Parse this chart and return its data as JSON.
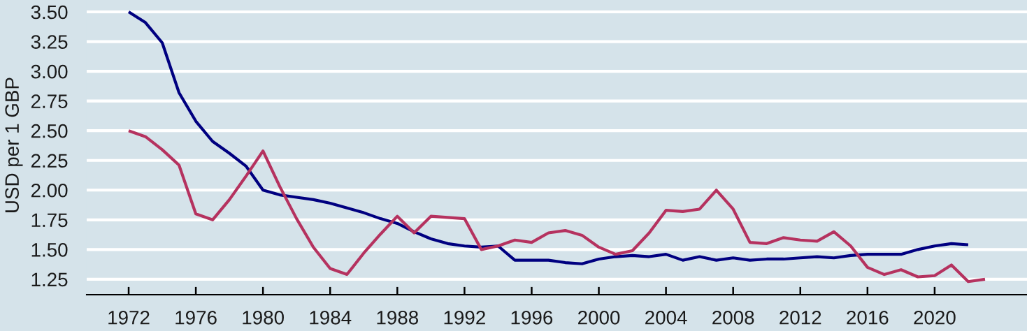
{
  "chart_data": {
    "type": "line",
    "ylabel": "USD per 1 GBP",
    "x": [
      1972,
      1973,
      1974,
      1975,
      1976,
      1977,
      1978,
      1979,
      1980,
      1981,
      1982,
      1983,
      1984,
      1985,
      1986,
      1987,
      1988,
      1989,
      1990,
      1991,
      1992,
      1993,
      1994,
      1995,
      1996,
      1997,
      1998,
      1999,
      2000,
      2001,
      2002,
      2003,
      2004,
      2005,
      2006,
      2007,
      2008,
      2009,
      2010,
      2011,
      2012,
      2013,
      2014,
      2015,
      2016,
      2017,
      2018,
      2019,
      2020,
      2021,
      2022,
      2023
    ],
    "series": [
      {
        "color": "#000080",
        "values": [
          3.5,
          3.41,
          3.24,
          2.82,
          2.58,
          2.41,
          2.31,
          2.2,
          2.0,
          1.96,
          1.94,
          1.92,
          1.89,
          1.85,
          1.81,
          1.76,
          1.72,
          1.65,
          1.59,
          1.55,
          1.53,
          1.52,
          1.53,
          1.41,
          1.41,
          1.41,
          1.39,
          1.38,
          1.42,
          1.44,
          1.45,
          1.44,
          1.46,
          1.41,
          1.44,
          1.41,
          1.43,
          1.41,
          1.42,
          1.42,
          1.43,
          1.44,
          1.43,
          1.45,
          1.46,
          1.46,
          1.46,
          1.5,
          1.53,
          1.55,
          1.54,
          null
        ]
      },
      {
        "color": "#b5325f",
        "values": [
          2.5,
          2.45,
          2.34,
          2.21,
          1.8,
          1.75,
          1.92,
          2.12,
          2.33,
          2.03,
          1.76,
          1.52,
          1.34,
          1.29,
          1.47,
          1.63,
          1.78,
          1.64,
          1.78,
          1.77,
          1.76,
          1.5,
          1.53,
          1.58,
          1.56,
          1.64,
          1.66,
          1.62,
          1.52,
          1.46,
          1.49,
          1.64,
          1.83,
          1.82,
          1.84,
          2.0,
          1.84,
          1.56,
          1.55,
          1.6,
          1.58,
          1.57,
          1.65,
          1.53,
          1.35,
          1.29,
          1.33,
          1.27,
          1.28,
          1.37,
          1.23,
          1.25
        ]
      }
    ],
    "xlim": [
      1969.5,
      2025.5
    ],
    "ylim": [
      1.12,
      3.6
    ],
    "xticks": [
      1972,
      1976,
      1980,
      1984,
      1988,
      1992,
      1996,
      2000,
      2004,
      2008,
      2012,
      2016,
      2020
    ],
    "yticks": [
      {
        "value": 1.25,
        "label": "1.25"
      },
      {
        "value": 1.5,
        "label": "1.50"
      },
      {
        "value": 1.75,
        "label": "1.75"
      },
      {
        "value": 2.0,
        "label": "2.00"
      },
      {
        "value": 2.25,
        "label": "2.25"
      },
      {
        "value": 2.5,
        "label": "2.50"
      },
      {
        "value": 2.75,
        "label": "2.75"
      },
      {
        "value": 3.0,
        "label": "3.00"
      },
      {
        "value": 3.25,
        "label": "3.25"
      },
      {
        "value": 3.5,
        "label": "3.50"
      }
    ],
    "grid": "y"
  }
}
